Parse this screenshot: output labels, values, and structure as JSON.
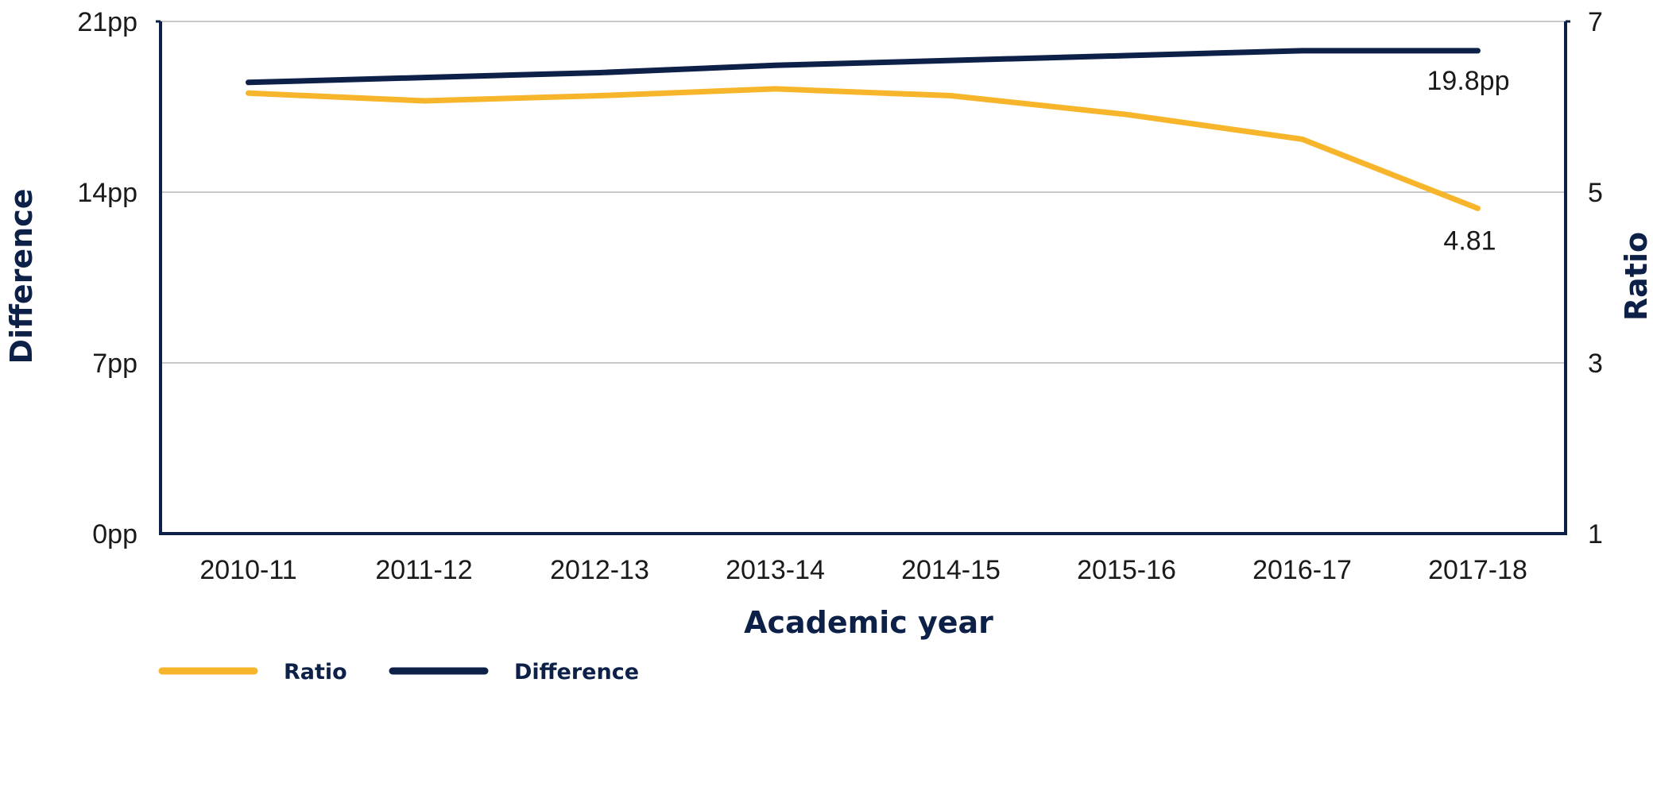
{
  "chart_data": {
    "type": "line",
    "x": [
      "2010-11",
      "2011-12",
      "2012-13",
      "2013-14",
      "2014-15",
      "2015-16",
      "2016-17",
      "2017-18"
    ],
    "xlabel": "Academic year",
    "ylabel_left": "Difference",
    "ylabel_right": "Ratio",
    "ylim_left": [
      0,
      21
    ],
    "ylim_right": [
      1,
      7
    ],
    "yticks_left": [
      0,
      7,
      14,
      21
    ],
    "yticks_left_labels": [
      "0pp",
      "7pp",
      "14pp",
      "21pp"
    ],
    "yticks_right": [
      1,
      3,
      5,
      7
    ],
    "yticks_right_labels": [
      "1",
      "3",
      "5",
      "7"
    ],
    "grid": true,
    "legend_position": "bottom-left",
    "series": [
      {
        "name": "Ratio",
        "axis": "right",
        "color": "#F7B52C",
        "values": [
          6.16,
          6.07,
          6.13,
          6.21,
          6.13,
          5.91,
          5.62,
          4.81
        ],
        "end_label": "4.81"
      },
      {
        "name": "Difference",
        "axis": "left",
        "color": "#0D2148",
        "values": [
          18.5,
          18.7,
          18.9,
          19.2,
          19.4,
          19.6,
          19.8,
          19.8
        ],
        "end_label": "19.8pp"
      }
    ]
  }
}
